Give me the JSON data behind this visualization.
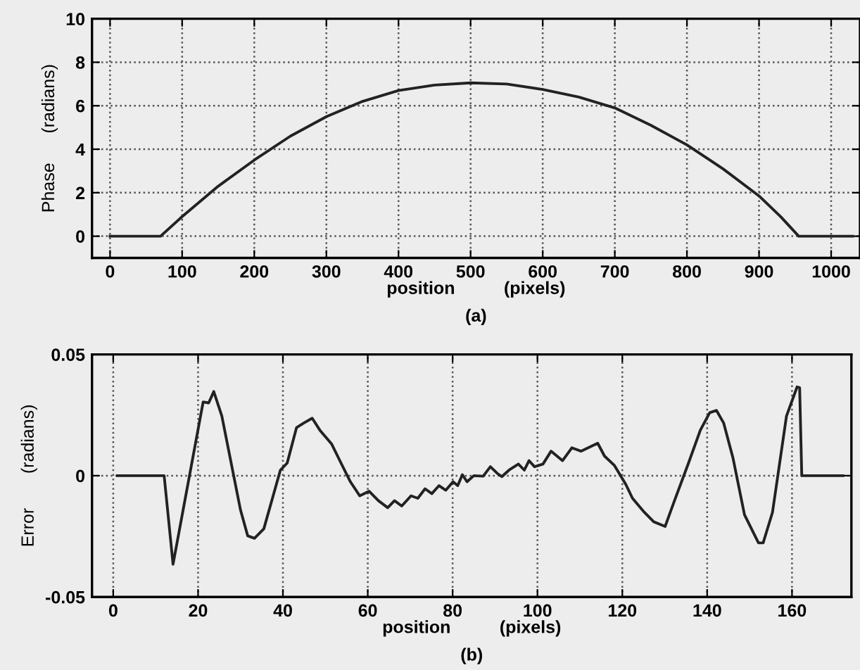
{
  "chart_data": [
    {
      "type": "line",
      "xlabel": "position          (pixels)",
      "ylabel": "Phase      (radians)",
      "annotations": [
        "(a)"
      ],
      "grid": true,
      "line_style": "solid",
      "marker": "none",
      "xlim": [
        -25,
        1040
      ],
      "ylim": [
        -1,
        10
      ],
      "xticks": [
        0,
        100,
        200,
        300,
        400,
        500,
        600,
        700,
        800,
        900,
        1000
      ],
      "yticks": [
        0,
        2,
        4,
        6,
        8,
        10
      ],
      "series": [
        {
          "color": "#222222",
          "x": [
            0,
            70,
            100,
            150,
            200,
            250,
            300,
            350,
            400,
            450,
            500,
            550,
            600,
            650,
            700,
            750,
            800,
            850,
            900,
            930,
            955,
            1030
          ],
          "values": [
            0,
            0,
            0.9,
            2.3,
            3.5,
            4.6,
            5.5,
            6.2,
            6.7,
            6.95,
            7.05,
            7.0,
            6.75,
            6.4,
            5.9,
            5.1,
            4.2,
            3.1,
            1.85,
            0.9,
            0,
            0
          ]
        }
      ]
    },
    {
      "type": "line",
      "xlabel": "position          (pixels)",
      "ylabel": "Error       (radians)",
      "annotations": [
        "(b)"
      ],
      "grid": true,
      "line_style": "solid",
      "marker": "none",
      "xlim": [
        -5,
        174
      ],
      "ylim": [
        -0.05,
        0.05
      ],
      "xticks": [
        0,
        20,
        40,
        60,
        80,
        100,
        120,
        140,
        160
      ],
      "yticks": [
        -0.05,
        0,
        0.05
      ],
      "series": [
        {
          "color": "#222222",
          "x": [
            1,
            12,
            14.1,
            21.2,
            22.5,
            23.7,
            25.6,
            30.0,
            31.7,
            33.3,
            35.5,
            39.4,
            41.0,
            43.2,
            44.9,
            46.9,
            48.7,
            51.5,
            53.7,
            55.9,
            58.1,
            60.3,
            62.5,
            64.7,
            66.3,
            68.0,
            70.2,
            71.8,
            73.5,
            75.1,
            76.8,
            78.4,
            80.1,
            81.2,
            82.3,
            83.4,
            85.0,
            87.2,
            88.9,
            90.5,
            91.6,
            93.3,
            95.5,
            96.9,
            98.0,
            99.3,
            101.3,
            103.2,
            105.9,
            108.1,
            110.3,
            114.2,
            115.8,
            118.1,
            120.8,
            122.4,
            125.2,
            127.4,
            130.1,
            132.3,
            135.6,
            138.4,
            140.6,
            142.2,
            143.9,
            146.1,
            148.8,
            152.1,
            153.2,
            155.4,
            158.7,
            161.2,
            161.8,
            162.3,
            172
          ],
          "values": [
            0,
            0,
            -0.0365,
            0.0304,
            0.03,
            0.0347,
            0.0246,
            -0.0141,
            -0.0248,
            -0.0258,
            -0.0219,
            0.0023,
            0.0052,
            0.0198,
            0.0217,
            0.0237,
            0.0188,
            0.013,
            0.0052,
            -0.0025,
            -0.0083,
            -0.0064,
            -0.0103,
            -0.0132,
            -0.0103,
            -0.0125,
            -0.0083,
            -0.0093,
            -0.0054,
            -0.0074,
            -0.0041,
            -0.006,
            -0.0025,
            -0.0041,
            0.0004,
            -0.0025,
            0,
            -0.0002,
            0.0037,
            0.001,
            -0.0004,
            0.0023,
            0.0048,
            0.0023,
            0.0062,
            0.0037,
            0.0048,
            0.0101,
            0.0062,
            0.0115,
            0.0101,
            0.0134,
            0.0081,
            0.0043,
            -0.0035,
            -0.0093,
            -0.0151,
            -0.019,
            -0.0209,
            -0.0103,
            0.0052,
            0.0188,
            0.026,
            0.0269,
            0.0217,
            0.0072,
            -0.0161,
            -0.0277,
            -0.0277,
            -0.0151,
            0.0246,
            0.0366,
            0.0363,
            0,
            0
          ]
        }
      ]
    }
  ]
}
